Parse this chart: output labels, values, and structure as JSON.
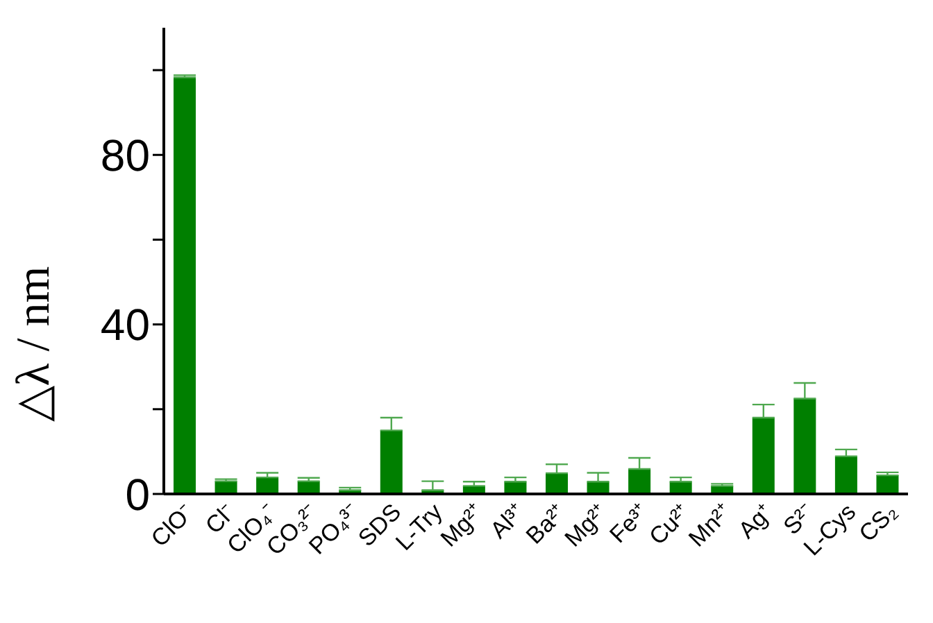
{
  "chart_data": {
    "type": "bar",
    "ylabel": "△λ / nm",
    "categories": [
      "ClO⁻",
      "Cl⁻",
      "ClO₄⁻",
      "CO₃²⁻",
      "PO₄³⁻",
      "SDS",
      "L-Try",
      "Mg²⁺",
      "Al³⁺",
      "Ba²⁺",
      "Mg²⁺",
      "Fe³⁺",
      "Cu²⁺",
      "Mn²⁺",
      "Ag⁺",
      "S²⁻",
      "L-Cys",
      "CS₂"
    ],
    "values": [
      98.3,
      3.0,
      3.9,
      3.0,
      0.9,
      15.0,
      0.9,
      1.9,
      2.9,
      4.9,
      2.9,
      5.9,
      2.9,
      1.9,
      18.0,
      22.5,
      8.9,
      4.4
    ],
    "errors": [
      [
        98.3,
        98.8
      ],
      [
        3.0,
        3.5
      ],
      [
        3.9,
        5.0
      ],
      [
        3.0,
        3.8
      ],
      [
        0.9,
        1.5
      ],
      [
        15.0,
        18.0
      ],
      [
        0.9,
        3.0
      ],
      [
        1.9,
        2.9
      ],
      [
        2.9,
        3.9
      ],
      [
        4.9,
        7.0
      ],
      [
        2.9,
        5.0
      ],
      [
        5.9,
        8.5
      ],
      [
        2.9,
        3.9
      ],
      [
        1.9,
        2.4
      ],
      [
        18.0,
        21.1
      ],
      [
        22.5,
        26.2
      ],
      [
        8.9,
        10.5
      ],
      [
        4.4,
        5.1
      ]
    ],
    "color": "#007f00",
    "ylim": [
      0,
      110
    ],
    "yticks": [
      0,
      {
        "value": 20,
        "label": null
      },
      40,
      {
        "value": 60,
        "label": null
      },
      80,
      {
        "value": 100,
        "label": null
      }
    ],
    "grid": false,
    "legend": false
  }
}
